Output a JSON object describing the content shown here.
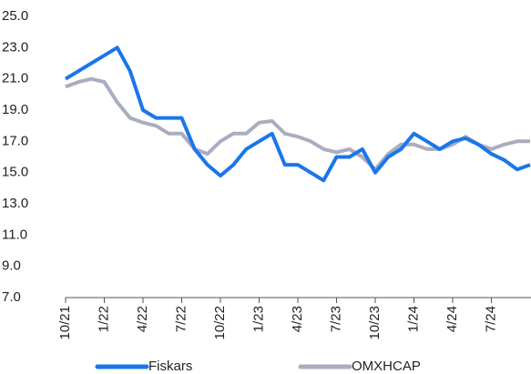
{
  "chart_data": {
    "type": "line",
    "categories": [
      "10/21",
      null,
      null,
      "1/22",
      null,
      null,
      "4/22",
      null,
      null,
      "7/22",
      null,
      null,
      "10/22",
      null,
      null,
      "1/23",
      null,
      null,
      "4/23",
      null,
      null,
      "7/23",
      null,
      null,
      "10/23",
      null,
      null,
      "1/24",
      null,
      null,
      "4/24",
      null,
      null,
      "7/24",
      null,
      null,
      null
    ],
    "series": [
      {
        "name": "Fiskars",
        "color": "#1a76ea",
        "values": [
          21,
          21.5,
          22,
          22.5,
          23,
          21.5,
          19,
          18.5,
          18.5,
          18.5,
          16.5,
          15.5,
          14.8,
          15.5,
          16.5,
          17,
          17.5,
          15.5,
          15.5,
          15,
          14.5,
          16,
          16,
          16.5,
          15,
          16,
          16.5,
          17.5,
          17,
          16.5,
          17,
          17.2,
          16.8,
          16.2,
          15.8,
          15.2,
          15.5
        ]
      },
      {
        "name": "OMXHCAP",
        "color": "#a9adbf",
        "values": [
          20.5,
          20.8,
          21,
          20.8,
          19.5,
          18.5,
          18.2,
          18,
          17.5,
          17.5,
          16.5,
          16.2,
          17,
          17.5,
          17.5,
          18.2,
          18.3,
          17.5,
          17.3,
          17,
          16.5,
          16.3,
          16.5,
          16,
          15.2,
          16.2,
          16.8,
          16.8,
          16.5,
          16.5,
          16.8,
          17.3,
          16.8,
          16.5,
          16.8,
          17,
          17
        ]
      }
    ],
    "ylim": [
      7,
      25
    ],
    "yticks": [
      {
        "value": 7,
        "label": "7.0"
      },
      {
        "value": 9,
        "label": "9.0"
      },
      {
        "value": 11,
        "label": "11.0"
      },
      {
        "value": 13,
        "label": "13.0"
      },
      {
        "value": 15,
        "label": "15.0"
      },
      {
        "value": 17,
        "label": "17.0"
      },
      {
        "value": 19,
        "label": "19.0"
      },
      {
        "value": 21,
        "label": "21.0"
      },
      {
        "value": 23,
        "label": "23.0"
      },
      {
        "value": 25,
        "label": "25.0"
      }
    ],
    "grid": false,
    "legend": "bottom"
  }
}
